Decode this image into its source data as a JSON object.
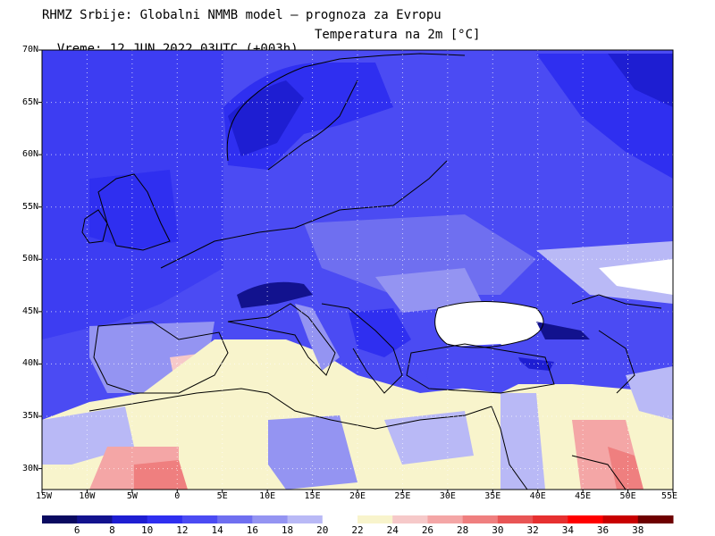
{
  "header": {
    "title": "RHMZ Srbije: Globalni NMMB model — prognoza za Evropu",
    "time": "Vreme: 12 JUN 2022 03UTC (+003h)",
    "parameter": "Temperatura na 2m [°C]"
  },
  "map": {
    "lon_range": [
      -15,
      55
    ],
    "lat_range": [
      28,
      70
    ],
    "lat_ticks": [
      {
        "value": 70,
        "label": "70N"
      },
      {
        "value": 65,
        "label": "65N"
      },
      {
        "value": 60,
        "label": "60N"
      },
      {
        "value": 55,
        "label": "55N"
      },
      {
        "value": 50,
        "label": "50N"
      },
      {
        "value": 45,
        "label": "45N"
      },
      {
        "value": 40,
        "label": "40N"
      },
      {
        "value": 35,
        "label": "35N"
      },
      {
        "value": 30,
        "label": "30N"
      }
    ],
    "lon_ticks": [
      {
        "value": -15,
        "label": "15W"
      },
      {
        "value": -10,
        "label": "10W"
      },
      {
        "value": -5,
        "label": "5W"
      },
      {
        "value": 0,
        "label": "0"
      },
      {
        "value": 5,
        "label": "5E"
      },
      {
        "value": 10,
        "label": "10E"
      },
      {
        "value": 15,
        "label": "15E"
      },
      {
        "value": 20,
        "label": "20E"
      },
      {
        "value": 25,
        "label": "25E"
      },
      {
        "value": 30,
        "label": "30E"
      },
      {
        "value": 35,
        "label": "35E"
      },
      {
        "value": 40,
        "label": "40E"
      },
      {
        "value": 45,
        "label": "45E"
      },
      {
        "value": 50,
        "label": "50E"
      },
      {
        "value": 55,
        "label": "55E"
      }
    ]
  },
  "legend": {
    "colors": [
      "#0a0a60",
      "#12128e",
      "#1e1ed2",
      "#2f2ff0",
      "#4b4bf3",
      "#6f6ff0",
      "#9494f2",
      "#b9b9f6",
      "#ffffff",
      "#f8f4cc",
      "#f6c9c9",
      "#f4a6a6",
      "#ef7f7f",
      "#e85555",
      "#e63030",
      "#ff0000",
      "#c80000",
      "#6e0000"
    ],
    "labels": [
      "6",
      "8",
      "10",
      "12",
      "14",
      "16",
      "18",
      "20",
      "22",
      "24",
      "26",
      "28",
      "30",
      "32",
      "34",
      "36",
      "38"
    ]
  }
}
